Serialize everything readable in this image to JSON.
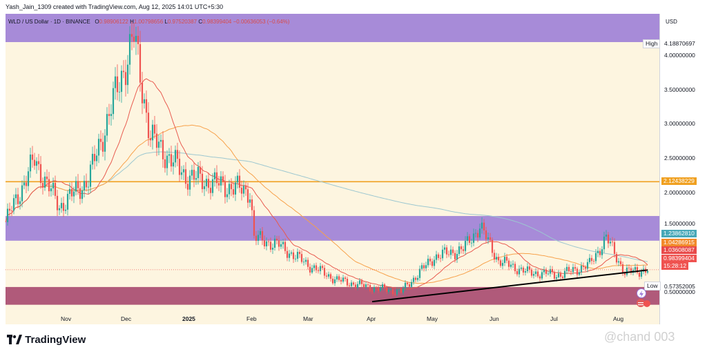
{
  "header": {
    "author_line": "Yash_Jain_1309 created with TradingView.com, Aug 12, 2025 14:01 UTC+5:30"
  },
  "legend": {
    "symbol": "WLD / US Dollar · 1D · BINANCE",
    "open_key": "O",
    "open": "0.98906122",
    "high_key": "H",
    "high": "1.00798656",
    "low_key": "L",
    "low": "0.97520387",
    "close_key": "C",
    "close": "0.98399404",
    "change": "−0.00636053 (−0.64%)"
  },
  "currency": "USD",
  "price_axis": {
    "labels": [
      "4.00000000",
      "3.50000000",
      "3.00000000",
      "2.50000000",
      "2.00000000",
      "1.50000000",
      "0.50000000"
    ],
    "high_label": "High",
    "high_value": "4.18870697",
    "low_label": "Low",
    "low_value": "0.57352005",
    "level_value": "2.12438229",
    "ma_long_value": "1.23862810",
    "ma_mid_value": "1.04286915",
    "ma_short_value": "1.03608087",
    "last_value": "0.98399404",
    "countdown": "15:28:12"
  },
  "time_axis": [
    "Nov",
    "Dec",
    "2025",
    "Feb",
    "Mar",
    "Apr",
    "May",
    "Jun",
    "Jul",
    "Aug"
  ],
  "brand": "TradingView",
  "watermark": "@chand 003",
  "colors": {
    "background": "#fdf5e0",
    "zone_purple": "#a78bd8",
    "zone_maroon": "#b05a7a",
    "level_orange": "#f0a020",
    "up": "#26a69a",
    "down": "#ef5350",
    "ma_short": "#e85a4f",
    "ma_mid": "#f7a14a",
    "ma_long": "#9cc7d0",
    "trendline": "#000000"
  },
  "chart_data": {
    "type": "candlestick",
    "title": "WLD / US Dollar · 1D · BINANCE",
    "ylim": [
      0.5,
      4.3
    ],
    "x": [
      "2024-10-06",
      "2024-10-20",
      "2024-11-01",
      "2024-11-15",
      "2024-12-01",
      "2024-12-07",
      "2024-12-15",
      "2025-01-01",
      "2025-01-15",
      "2025-02-01",
      "2025-02-03",
      "2025-02-15",
      "2025-03-01",
      "2025-03-15",
      "2025-04-01",
      "2025-04-15",
      "2025-05-01",
      "2025-05-15",
      "2025-05-23",
      "2025-06-01",
      "2025-06-15",
      "2025-07-01",
      "2025-07-15",
      "2025-07-23",
      "2025-08-01",
      "2025-08-12"
    ],
    "close": [
      1.6,
      2.4,
      1.8,
      2.15,
      3.5,
      4.0,
      2.7,
      2.2,
      2.1,
      2.0,
      1.4,
      1.3,
      1.05,
      0.85,
      0.75,
      0.7,
      1.15,
      1.25,
      1.55,
      1.1,
      0.95,
      0.92,
      1.05,
      1.4,
      0.95,
      0.98399404
    ],
    "series": [
      {
        "name": "WLD / US Dollar",
        "values": [
          1.6,
          2.4,
          1.8,
          2.15,
          3.5,
          4.0,
          2.7,
          2.2,
          2.1,
          2.0,
          1.4,
          1.3,
          1.05,
          0.85,
          0.75,
          0.7,
          1.15,
          1.25,
          1.55,
          1.1,
          0.95,
          0.92,
          1.05,
          1.4,
          0.95,
          0.98399404
        ]
      }
    ],
    "high": 4.18870697,
    "low": 0.57352005,
    "horizontal_level": 2.12438229,
    "zones": [
      {
        "from": 1.36,
        "to": 1.68,
        "color": "#a78bd8"
      },
      {
        "from": 0.53,
        "to": 0.76,
        "color": "#b05a7a"
      }
    ],
    "moving_average_values": [
      1.2386281,
      1.04286915,
      1.03608087
    ],
    "last_price": 0.98399404,
    "trendline": {
      "from_date": "2025-04-01",
      "from_value": 0.57,
      "to_date": "2025-08-12",
      "to_value": 0.98
    }
  }
}
